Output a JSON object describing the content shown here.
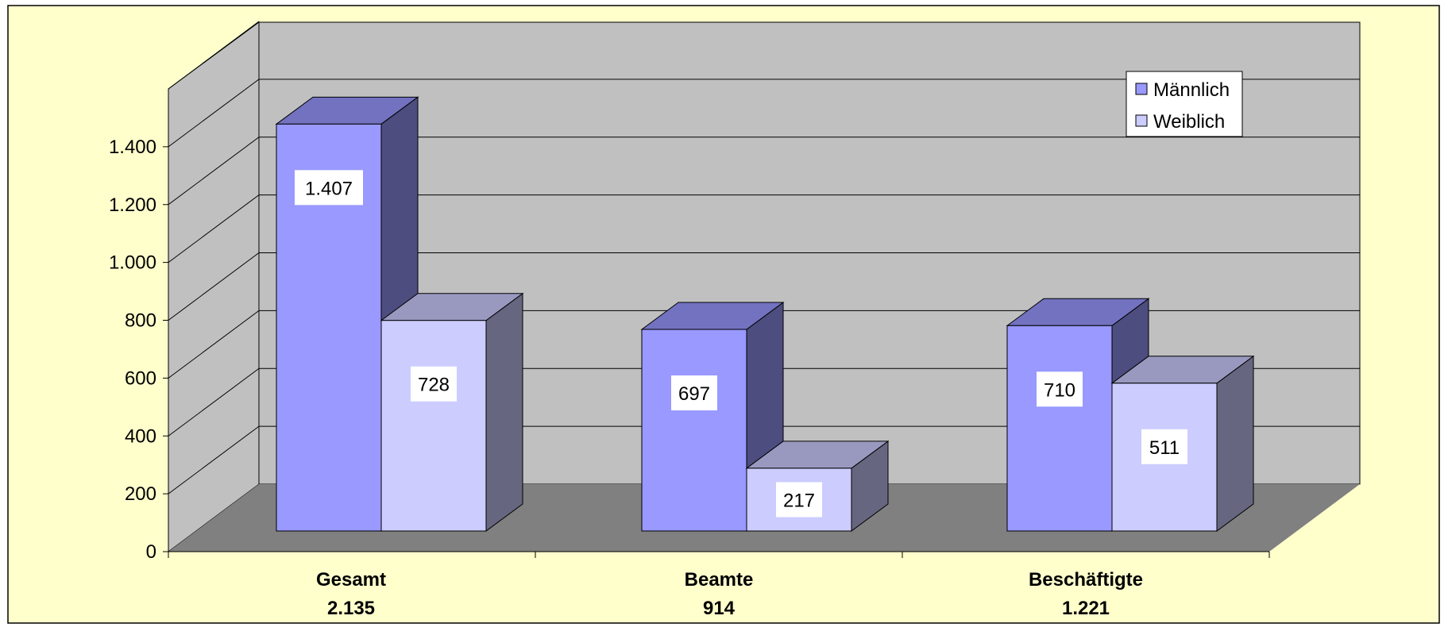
{
  "chart_data": {
    "type": "bar",
    "categories": [
      "Gesamt",
      "Beamte",
      "Beschäftigte"
    ],
    "category_totals": [
      "2.135",
      "914",
      "1.221"
    ],
    "series": [
      {
        "name": "Männlich",
        "values": [
          1407,
          697,
          710
        ],
        "labels": [
          "1.407",
          "697",
          "710"
        ]
      },
      {
        "name": "Weiblich",
        "values": [
          728,
          217,
          511
        ],
        "labels": [
          "728",
          "217",
          "511"
        ]
      }
    ],
    "y_ticks": [
      {
        "value": 0,
        "label": "0"
      },
      {
        "value": 200,
        "label": "200"
      },
      {
        "value": 400,
        "label": "400"
      },
      {
        "value": 600,
        "label": "600"
      },
      {
        "value": 800,
        "label": "800"
      },
      {
        "value": 1000,
        "label": "1.000"
      },
      {
        "value": 1200,
        "label": "1.200"
      },
      {
        "value": 1400,
        "label": "1.400"
      }
    ],
    "ylim": [
      0,
      1600
    ],
    "three_d": true,
    "grid": true,
    "legend_position": "top-right",
    "title": "",
    "xlabel": "",
    "ylabel": ""
  },
  "colors": {
    "background": "#FFFFCC",
    "wall": "#C0C0C0",
    "floor": "#808080",
    "male_front": "#9999FF",
    "male_top": "#7272C0",
    "male_side": "#4D4D80",
    "female_front": "#CCCCFF",
    "female_top": "#9999C0",
    "female_side": "#666680"
  }
}
